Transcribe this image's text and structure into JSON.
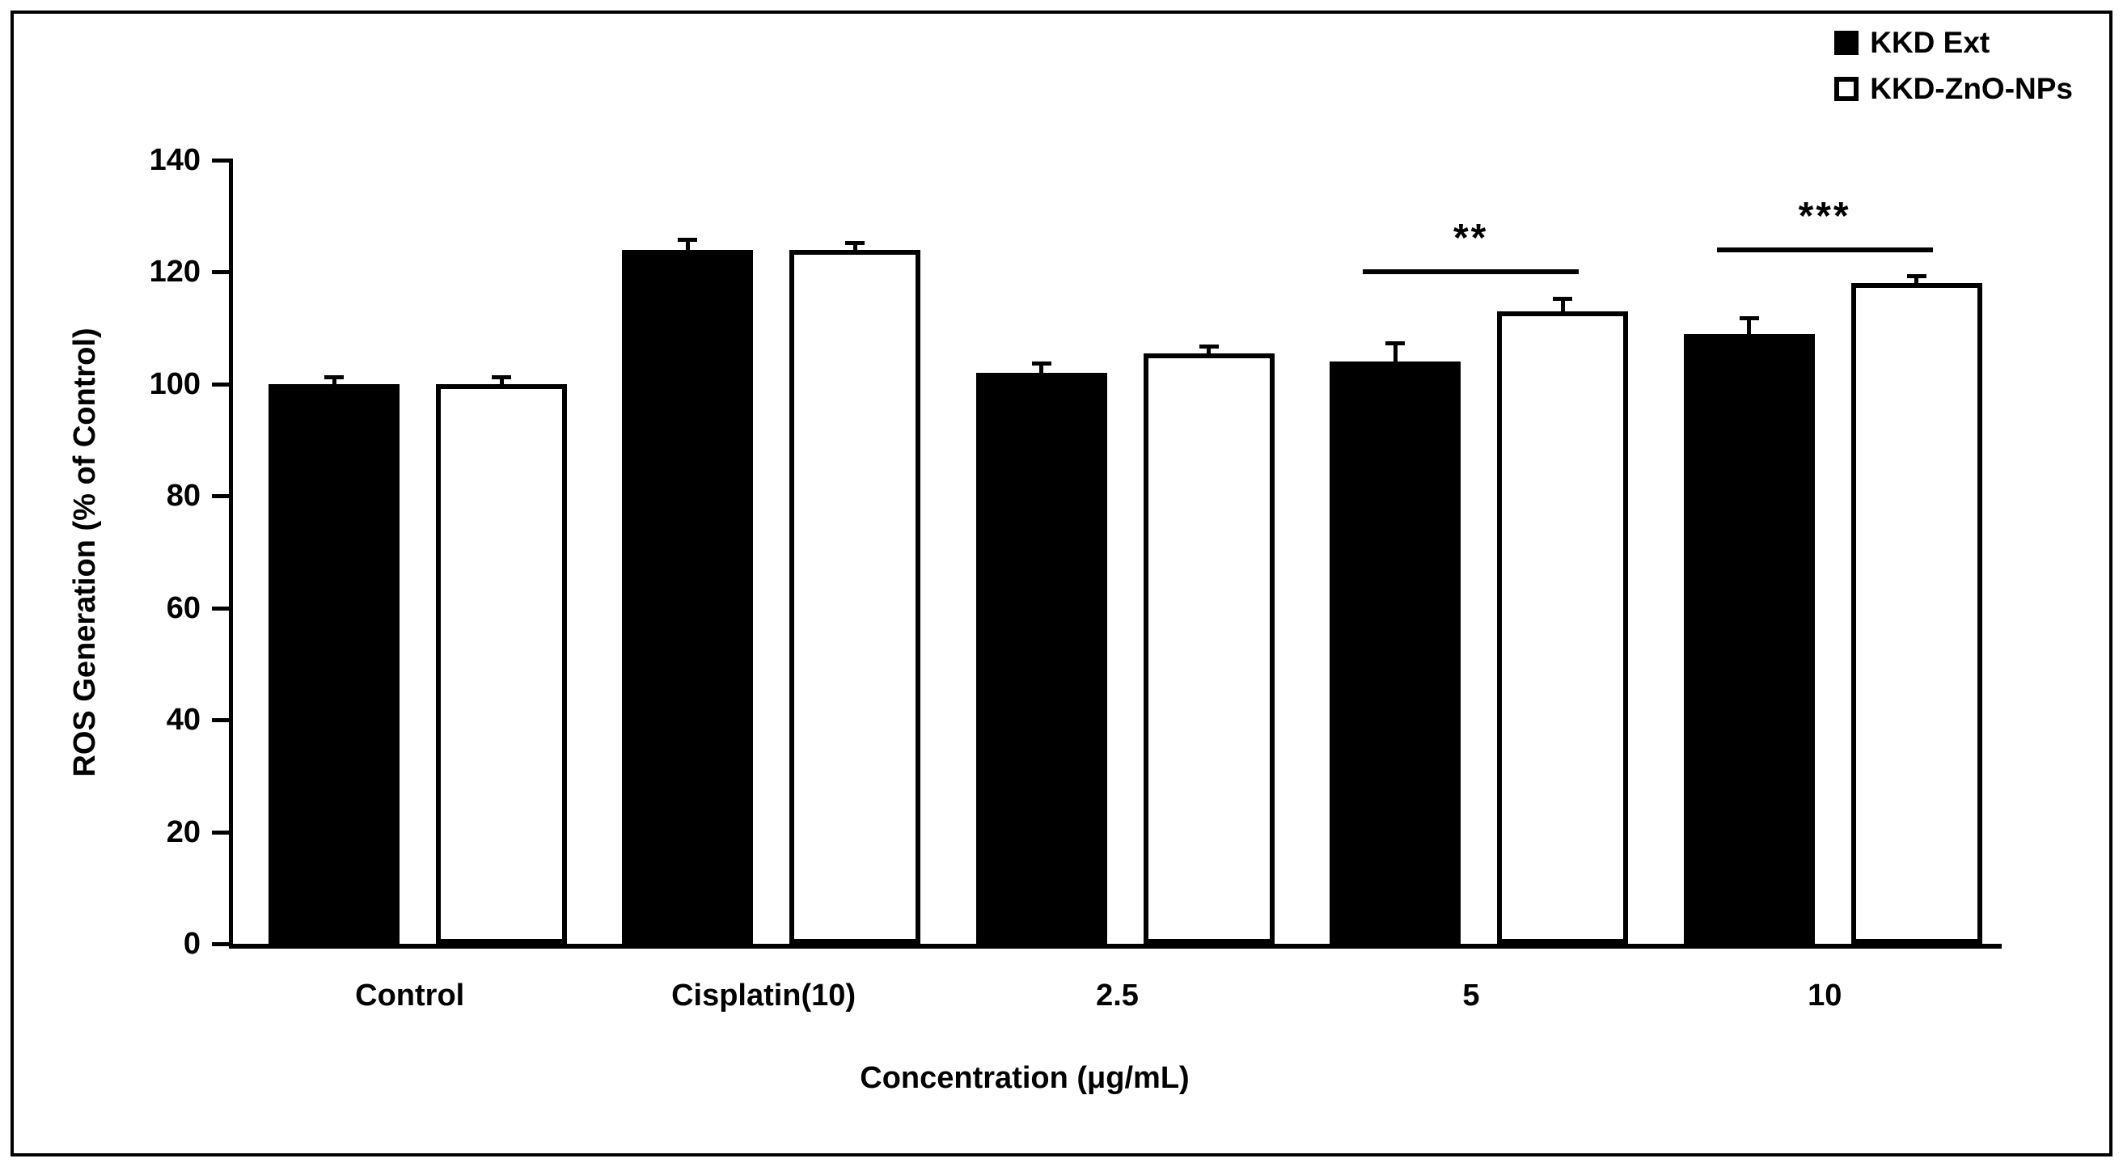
{
  "figure": {
    "background": "#ffffff",
    "frame_color": "#000000",
    "ink_color": "#000000"
  },
  "legend": {
    "items": [
      {
        "label": "KKD Ext",
        "swatch_icon": "filled-black-square-icon"
      },
      {
        "label": "KKD-ZnO-NPs",
        "swatch_icon": "open-square-icon"
      }
    ]
  },
  "chart_data": {
    "type": "bar",
    "title": "",
    "xlabel": "Concentration (μg/mL)",
    "ylabel": "ROS Generation (% of Control)",
    "ylim": [
      0,
      140
    ],
    "yticks": [
      0,
      20,
      40,
      60,
      80,
      100,
      120,
      140
    ],
    "categories": [
      "Control",
      "Cisplatin(10)",
      "2.5",
      "5",
      "10"
    ],
    "series": [
      {
        "name": "KKD Ext",
        "fill": "#000000",
        "values": [
          100,
          124,
          102,
          104,
          109
        ],
        "errors": [
          1,
          1.5,
          1.5,
          3,
          2.5
        ]
      },
      {
        "name": "KKD-ZnO-NPs",
        "fill": "#ffffff",
        "border": "#000000",
        "values": [
          100,
          124,
          105.5,
          113,
          118
        ],
        "errors": [
          1,
          1,
          1,
          2,
          1
        ]
      }
    ],
    "error_bars": "upper-only",
    "annotations": [
      {
        "label": "**",
        "category": "5",
        "category_index": 3,
        "line_y": 120
      },
      {
        "label": "***",
        "category": "10",
        "category_index": 4,
        "line_y": 124
      }
    ],
    "legend_position": "top-right",
    "grid": false
  }
}
